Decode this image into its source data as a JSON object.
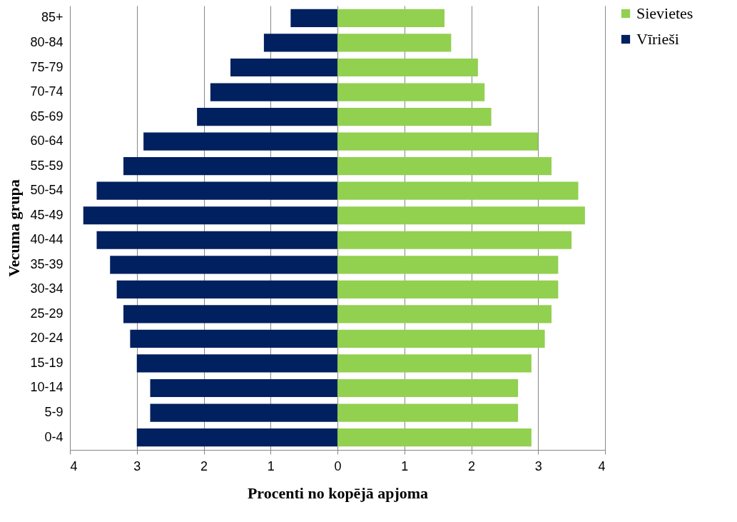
{
  "chart_data": {
    "type": "bar",
    "orientation": "horizontal",
    "xlabel": "Procenti no kopējā apjoma",
    "ylabel": "Vecuma grupa",
    "categories": [
      "85+",
      "80-84",
      "75-79",
      "70-74",
      "65-69",
      "60-64",
      "55-59",
      "50-54",
      "45-49",
      "40-44",
      "35-39",
      "30-34",
      "25-29",
      "20-24",
      "15-19",
      "10-14",
      "5-9",
      "0-4"
    ],
    "series": [
      {
        "name": "Sievietes",
        "color": "#92d050",
        "values": [
          1.6,
          1.7,
          2.1,
          2.2,
          2.3,
          3.0,
          3.2,
          3.6,
          3.7,
          3.5,
          3.3,
          3.3,
          3.2,
          3.1,
          2.9,
          2.7,
          2.7,
          2.9
        ]
      },
      {
        "name": "Vīrieši",
        "color": "#002060",
        "values": [
          -0.7,
          -1.1,
          -1.6,
          -1.9,
          -2.1,
          -2.9,
          -3.2,
          -3.6,
          -3.8,
          -3.6,
          -3.4,
          -3.3,
          -3.2,
          -3.1,
          -3.0,
          -2.8,
          -2.8,
          -3.0
        ]
      }
    ],
    "xlim": [
      -4,
      4
    ],
    "xticks": [
      {
        "value": -4,
        "label": "4"
      },
      {
        "value": -3,
        "label": "3"
      },
      {
        "value": -2,
        "label": "2"
      },
      {
        "value": -1,
        "label": "1"
      },
      0,
      1,
      2,
      3,
      4
    ],
    "stacked": true,
    "grid": "x",
    "legend": "right"
  }
}
